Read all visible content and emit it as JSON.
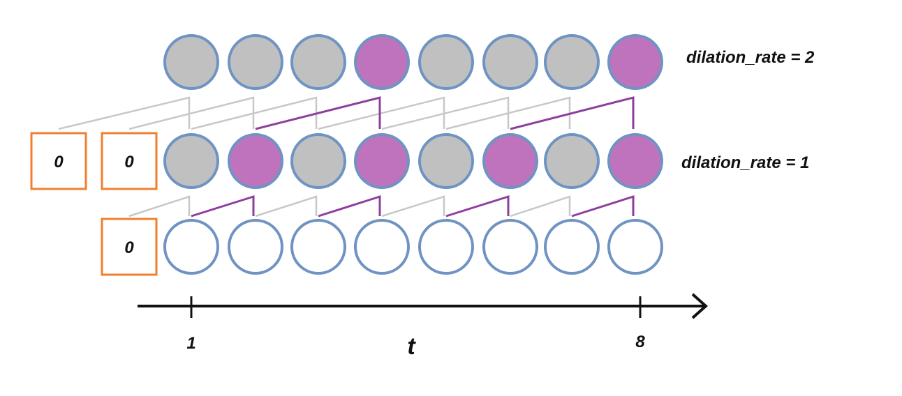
{
  "layers": [
    {
      "label": "dilation_rate = 2",
      "dilation": 2,
      "pad_labels": [],
      "highlighted": [
        4,
        8
      ]
    },
    {
      "label": "dilation_rate = 1",
      "dilation": 1,
      "pad_labels": [
        "0",
        "0"
      ],
      "highlighted": [
        2,
        4,
        6,
        8
      ]
    },
    {
      "label": "",
      "dilation": 1,
      "pad_labels": [
        "0"
      ],
      "highlighted": []
    }
  ],
  "axis": {
    "label": "t",
    "start_tick": "1",
    "end_tick": "8",
    "steps": 8
  },
  "colors": {
    "filled": "#c0c0c0",
    "highlight": "#c073bd",
    "input": "#ffffff",
    "node_border": "#6f93c2",
    "pad_border": "#f07f2f",
    "gray_line": "#c8c8c8",
    "purple_line": "#8e3f9e",
    "axis": "#111111"
  }
}
